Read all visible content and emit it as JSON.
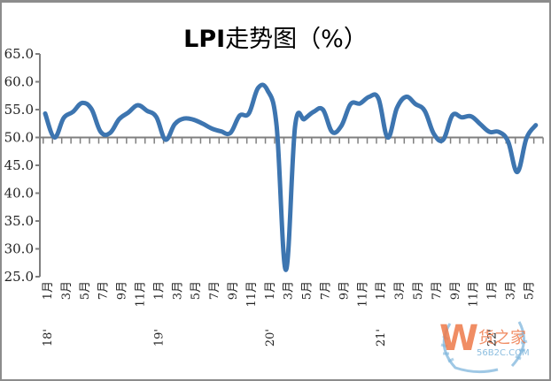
{
  "chart_data": {
    "type": "line",
    "title": "LPI走势图（%）",
    "xlabel": "",
    "ylabel": "",
    "ylim": [
      25.0,
      65.0
    ],
    "y_ticks": [
      "65.0",
      "60.0",
      "55.0",
      "50.0",
      "45.0",
      "40.0",
      "35.0",
      "30.0",
      "25.0"
    ],
    "x_axis_crosses_at": 50.0,
    "grid": false,
    "legend": "none",
    "x_tick_labels": [
      "1月",
      "3月",
      "5月",
      "7月",
      "9月",
      "11月",
      "1月",
      "3月",
      "5月",
      "7月",
      "9月",
      "11月",
      "1月",
      "3月",
      "5月",
      "7月",
      "9月",
      "11月",
      "1月",
      "3月",
      "5月",
      "7月",
      "9月",
      "11月",
      "1月",
      "3月",
      "5月"
    ],
    "year_labels": [
      "18'",
      "19'",
      "20'",
      "21'",
      "22'"
    ],
    "x": [
      "2018-01",
      "2018-02",
      "2018-03",
      "2018-04",
      "2018-05",
      "2018-06",
      "2018-07",
      "2018-08",
      "2018-09",
      "2018-10",
      "2018-11",
      "2018-12",
      "2019-01",
      "2019-02",
      "2019-03",
      "2019-04",
      "2019-05",
      "2019-06",
      "2019-07",
      "2019-08",
      "2019-09",
      "2019-10",
      "2019-11",
      "2019-12",
      "2020-01",
      "2020-02",
      "2020-03",
      "2020-04",
      "2020-05",
      "2020-06",
      "2020-07",
      "2020-08",
      "2020-09",
      "2020-10",
      "2020-11",
      "2020-12",
      "2021-01",
      "2021-02",
      "2021-03",
      "2021-04",
      "2021-05",
      "2021-06",
      "2021-07",
      "2021-08",
      "2021-09",
      "2021-10",
      "2021-11",
      "2021-12",
      "2022-01",
      "2022-02",
      "2022-03",
      "2022-04",
      "2022-05",
      "2022-06"
    ],
    "series": [
      {
        "name": "LPI",
        "color": "#3d75b0",
        "values": [
          54.3,
          50.0,
          53.5,
          54.6,
          56.2,
          55.1,
          51.0,
          50.8,
          53.3,
          54.5,
          55.8,
          54.8,
          53.7,
          49.6,
          52.4,
          53.4,
          53.2,
          52.5,
          51.6,
          51.1,
          50.8,
          53.9,
          54.3,
          58.9,
          58.5,
          52.0,
          26.2,
          52.0,
          53.3,
          54.6,
          55.0,
          51.0,
          52.1,
          56.0,
          56.1,
          57.3,
          57.0,
          50.0,
          55.3,
          57.3,
          56.0,
          54.8,
          50.6,
          49.6,
          54.0,
          53.6,
          53.8,
          52.4,
          51.0,
          51.0,
          49.3,
          43.8,
          49.9,
          52.2
        ]
      }
    ]
  },
  "header": {
    "title_latin": "LPI",
    "title_cjk": "走势图（%）"
  },
  "watermark": {
    "logo_letter": "W",
    "brand": "货之家",
    "domain": "56B2C.COM"
  },
  "colors": {
    "line": "#3d75b0",
    "axis": "#7f7f7f",
    "watermark_orange": "#ee7a4a",
    "watermark_blue": "#7fb6dc"
  }
}
